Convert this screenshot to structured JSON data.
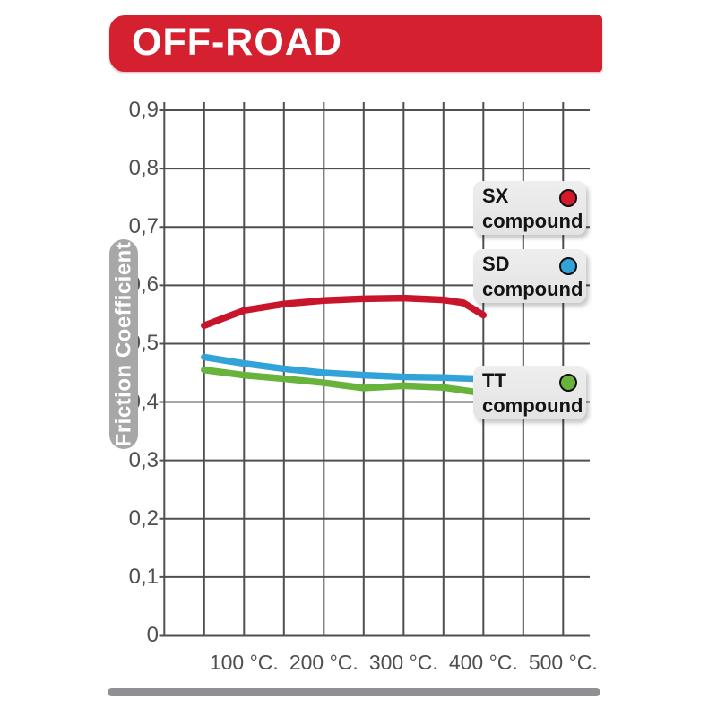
{
  "banner": {
    "label": "OFF-ROAD",
    "bg_color": "#d5202f",
    "text_color": "#ffffff"
  },
  "chart_data": {
    "type": "line",
    "title": "OFF-ROAD",
    "ylabel": "Friction Coefficient",
    "xlabel": "",
    "ylim": [
      0,
      0.9
    ],
    "xlim_deg_c": [
      0,
      530
    ],
    "grid": true,
    "y_grid_step": 0.1,
    "x_grid_step_deg_c": 50,
    "grid_color": "#4f4f4f",
    "y_ticks": [
      {
        "value": 0.9,
        "label": "0,9"
      },
      {
        "value": 0.8,
        "label": "0,8"
      },
      {
        "value": 0.7,
        "label": "0,7"
      },
      {
        "value": 0.6,
        "label": "0,6"
      },
      {
        "value": 0.5,
        "label": "0,5"
      },
      {
        "value": 0.4,
        "label": "0,4"
      },
      {
        "value": 0.3,
        "label": "0,3"
      },
      {
        "value": 0.2,
        "label": "0,2"
      },
      {
        "value": 0.1,
        "label": "0,1"
      },
      {
        "value": 0,
        "label": "0"
      }
    ],
    "x_ticks": [
      {
        "value": 100,
        "label": "100 °C."
      },
      {
        "value": 200,
        "label": "200 °C."
      },
      {
        "value": 300,
        "label": "300 °C."
      },
      {
        "value": 400,
        "label": "400 °C."
      },
      {
        "value": 500,
        "label": "500 °C."
      }
    ],
    "series": [
      {
        "id": "sx",
        "name": "SX compound",
        "color": "#c9152b",
        "points": [
          [
            50,
            0.531
          ],
          [
            100,
            0.557
          ],
          [
            150,
            0.568
          ],
          [
            200,
            0.574
          ],
          [
            250,
            0.577
          ],
          [
            300,
            0.578
          ],
          [
            350,
            0.575
          ],
          [
            375,
            0.57
          ],
          [
            400,
            0.549
          ]
        ]
      },
      {
        "id": "sd",
        "name": "SD compound",
        "color": "#31a3d9",
        "points": [
          [
            50,
            0.477
          ],
          [
            100,
            0.466
          ],
          [
            150,
            0.457
          ],
          [
            200,
            0.45
          ],
          [
            250,
            0.446
          ],
          [
            300,
            0.443
          ],
          [
            350,
            0.442
          ],
          [
            390,
            0.44
          ]
        ]
      },
      {
        "id": "tt",
        "name": "TT compound",
        "color": "#68b33c",
        "points": [
          [
            50,
            0.455
          ],
          [
            100,
            0.446
          ],
          [
            150,
            0.44
          ],
          [
            200,
            0.433
          ],
          [
            250,
            0.424
          ],
          [
            300,
            0.428
          ],
          [
            350,
            0.425
          ],
          [
            390,
            0.417
          ]
        ]
      }
    ],
    "legend_position": "right-overlay"
  },
  "legend": {
    "items": [
      {
        "line1": "SX",
        "line2": "compound",
        "dot_color": "#d6182b"
      },
      {
        "line1": "SD",
        "line2": "compound",
        "dot_color": "#31a3d9"
      },
      {
        "line1": "TT",
        "line2": "compound",
        "dot_color": "#68b33c"
      }
    ]
  }
}
